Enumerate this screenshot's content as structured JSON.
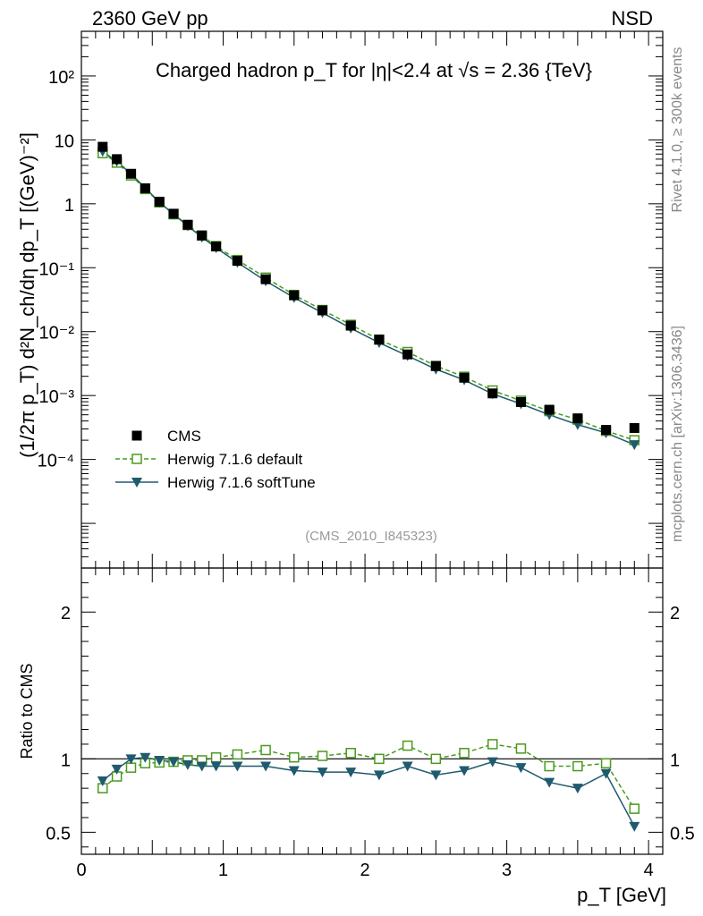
{
  "header": {
    "left": "2360 GeV pp",
    "right": "NSD"
  },
  "side_labels": {
    "rivet": "Rivet 4.1.0, ≥ 300k events",
    "mcplots": "mcplots.cern.ch [arXiv:1306.3436]"
  },
  "watermark": "(CMS_2010_I845323)",
  "colors": {
    "cms": "#000000",
    "default": "#4a9a1e",
    "softtune": "#1f5a6e"
  },
  "chart_data": [
    {
      "type": "line",
      "scale": "log",
      "title": "Charged hadron p_T for |η|<2.4 at √s = 2.36 {TeV}",
      "ylabel": "(1/2π p_T) d²N_ch/dη dp_T [(GeV)⁻²]",
      "xlim": [
        0,
        4.1
      ],
      "ylim": [
        2e-06,
        500
      ],
      "y_tick_labels": [
        "10⁻⁴",
        "10⁻³",
        "10⁻²",
        "10⁻¹",
        "1",
        "10",
        "10²"
      ],
      "y_tick_values": [
        0.0001,
        0.001,
        0.01,
        0.1,
        1,
        10,
        100
      ],
      "x": [
        0.15,
        0.25,
        0.35,
        0.45,
        0.55,
        0.65,
        0.75,
        0.85,
        0.95,
        1.1,
        1.3,
        1.5,
        1.7,
        1.9,
        2.1,
        2.3,
        2.5,
        2.7,
        2.9,
        3.1,
        3.3,
        3.5,
        3.7,
        3.9
      ],
      "series": [
        {
          "name": "CMS",
          "style": "square-filled",
          "values": [
            7.8,
            5.0,
            2.95,
            1.75,
            1.08,
            0.7,
            0.47,
            0.32,
            0.215,
            0.128,
            0.066,
            0.037,
            0.0215,
            0.0124,
            0.0075,
            0.0044,
            0.0029,
            0.0019,
            0.00108,
            0.00079,
            0.0006,
            0.00044,
            0.00029,
            0.00031
          ]
        },
        {
          "name": "Herwig 7.1.6 default",
          "style": "square-open-dashed",
          "values": [
            6.2,
            4.4,
            2.78,
            1.7,
            1.05,
            0.685,
            0.465,
            0.318,
            0.218,
            0.132,
            0.07,
            0.0375,
            0.0218,
            0.0128,
            0.0075,
            0.0048,
            0.0029,
            0.00197,
            0.0012,
            0.00083,
            0.00057,
            0.00042,
            0.00028,
            0.0002
          ]
        },
        {
          "name": "Herwig 7.1.6 softTune",
          "style": "triangle-down-solid",
          "values": [
            6.6,
            4.6,
            2.95,
            1.77,
            1.06,
            0.69,
            0.45,
            0.3,
            0.205,
            0.121,
            0.062,
            0.034,
            0.0197,
            0.0113,
            0.0067,
            0.0042,
            0.00258,
            0.00175,
            0.00106,
            0.00074,
            0.0005,
            0.00035,
            0.00026,
            0.00017
          ]
        }
      ],
      "legend": [
        "CMS",
        "Herwig 7.1.6 default",
        "Herwig 7.1.6 softTune"
      ],
      "legend_position": "bottom-left"
    },
    {
      "type": "line",
      "title": "",
      "xlabel": "p_T [GeV]",
      "ylabel": "Ratio to CMS",
      "xlim": [
        0,
        4.1
      ],
      "ylim": [
        0.35,
        2.3
      ],
      "x_tick_labels": [
        "0",
        "1",
        "2",
        "3",
        "4"
      ],
      "y_tick_labels": [
        "0.5",
        "1",
        "2"
      ],
      "y_tick_values": [
        0.5,
        1,
        2
      ],
      "reference_line": 1,
      "x": [
        0.15,
        0.25,
        0.35,
        0.45,
        0.55,
        0.65,
        0.75,
        0.85,
        0.95,
        1.1,
        1.3,
        1.5,
        1.7,
        1.9,
        2.1,
        2.3,
        2.5,
        2.7,
        2.9,
        3.1,
        3.3,
        3.5,
        3.7,
        3.9
      ],
      "series": [
        {
          "name": "Herwig 7.1.6 default",
          "values": [
            0.8,
            0.88,
            0.94,
            0.97,
            0.975,
            0.98,
            0.99,
            0.99,
            1.01,
            1.03,
            1.06,
            1.01,
            1.02,
            1.04,
            1.0,
            1.09,
            1.0,
            1.04,
            1.1,
            1.07,
            0.95,
            0.95,
            0.97,
            0.66
          ]
        },
        {
          "name": "Herwig 7.1.6 softTune",
          "values": [
            0.85,
            0.93,
            1.0,
            1.01,
            0.99,
            0.98,
            0.96,
            0.95,
            0.95,
            0.95,
            0.95,
            0.92,
            0.91,
            0.91,
            0.89,
            0.95,
            0.89,
            0.92,
            0.98,
            0.94,
            0.84,
            0.8,
            0.9,
            0.54
          ]
        }
      ]
    }
  ]
}
